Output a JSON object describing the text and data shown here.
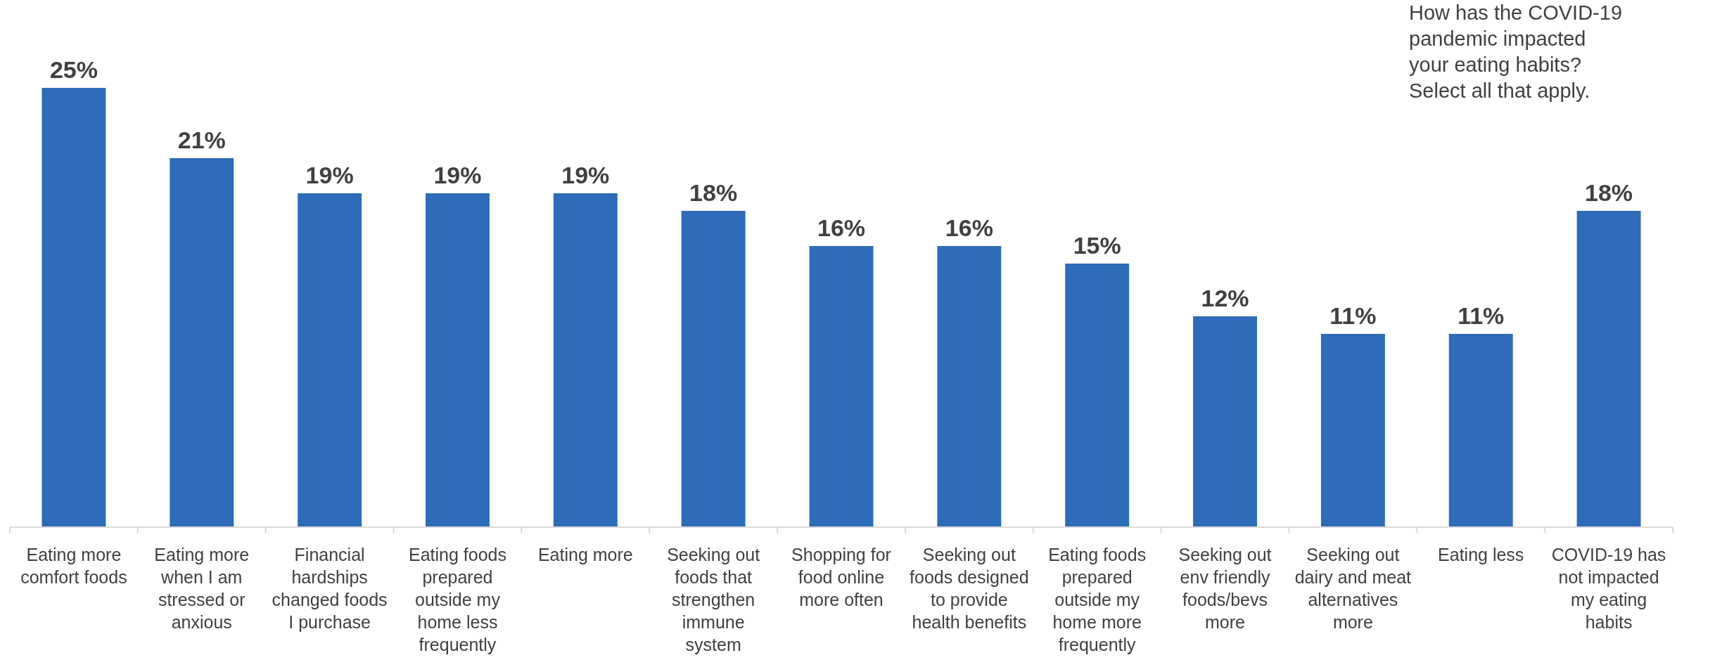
{
  "chart_data": {
    "type": "bar",
    "title": "How has the COVID-19 pandemic impacted your eating habits? Select all that apply.",
    "categories": [
      "Eating more comfort foods",
      "Eating more when I am stressed or anxious",
      "Financial hardships changed foods I purchase",
      "Eating foods prepared outside my home less frequently",
      "Eating more",
      "Seeking out foods that strengthen immune system",
      "Shopping for food online more often",
      "Seeking out foods designed to provide health benefits",
      "Eating foods prepared outside my home more frequently",
      "Seeking out env friendly foods/bevs more",
      "Seeking out dairy and meat alternatives more",
      "Eating less",
      "COVID-19 has not impacted my eating habits"
    ],
    "values": [
      25,
      21,
      19,
      19,
      19,
      18,
      16,
      16,
      15,
      12,
      11,
      11,
      18
    ],
    "value_labels": [
      "25%",
      "21%",
      "19%",
      "19%",
      "19%",
      "18%",
      "16%",
      "16%",
      "15%",
      "12%",
      "11%",
      "11%",
      "18%"
    ],
    "color": "#2e6bb8"
  }
}
